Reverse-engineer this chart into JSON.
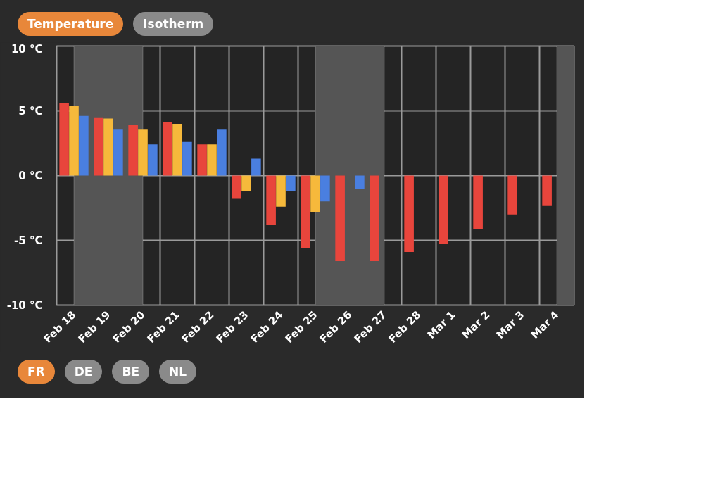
{
  "chart_data": {
    "type": "bar",
    "categories": [
      "Feb 18",
      "Feb 19",
      "Feb 20",
      "Feb 21",
      "Feb 22",
      "Feb 23",
      "Feb 24",
      "Feb 25",
      "Feb 26",
      "Feb 27",
      "Feb 28",
      "Mar 1",
      "Mar 2",
      "Mar 3",
      "Mar 4"
    ],
    "series": [
      {
        "color": "#e8453c",
        "values": [
          5.6,
          4.5,
          3.9,
          4.1,
          2.4,
          -1.8,
          -3.8,
          -5.6,
          -6.6,
          -6.6,
          -5.9,
          -5.3,
          -4.1,
          -3.0,
          -2.3
        ]
      },
      {
        "color": "#f6b93b",
        "values": [
          5.4,
          4.4,
          3.6,
          4.0,
          2.4,
          -1.2,
          -2.4,
          -2.8,
          null,
          null,
          null,
          null,
          null,
          null,
          null
        ]
      },
      {
        "color": "#4a7fe0",
        "values": [
          4.6,
          3.6,
          2.4,
          2.6,
          3.6,
          1.3,
          -1.2,
          -2.0,
          -1.0,
          null,
          null,
          null,
          null,
          null,
          null
        ]
      }
    ],
    "ylim": [
      -10,
      10
    ],
    "yticks": [
      {
        "value": -10,
        "label": "-10 °C"
      },
      {
        "value": -5,
        "label": "-5 °C"
      },
      {
        "value": 0,
        "label": "0 °C"
      },
      {
        "value": 5,
        "label": "5 °C"
      },
      {
        "value": 10,
        "label": "10 °C"
      }
    ],
    "bands": [
      {
        "axis": "x",
        "from": "Feb 18",
        "to": "Feb 20",
        "color": "#555555"
      },
      {
        "axis": "x",
        "from": "Feb 25",
        "to": "Feb 27",
        "color": "#555555"
      },
      {
        "axis": "x",
        "from": "Mar 4",
        "to": "Mar 4",
        "color": "#555555"
      }
    ],
    "grid": true,
    "annotations": [
      "Temperature",
      "Isotherm",
      "FR",
      "DE",
      "BE",
      "NL"
    ]
  }
}
